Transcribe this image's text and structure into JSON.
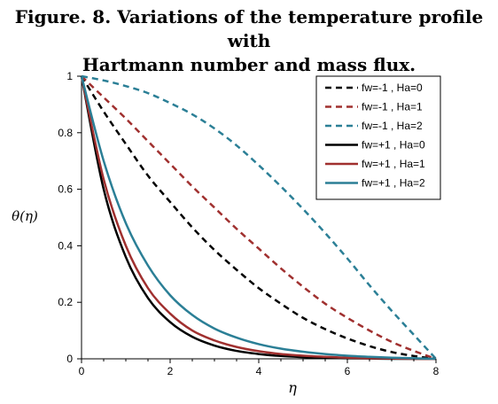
{
  "figure": {
    "title_line1": "Figure. 8. Variations of the temperature profile with",
    "title_line2": "Hartmann number and mass flux."
  },
  "chart_data": {
    "type": "line",
    "title": "Figure. 8. Variations of the temperature profile with Hartmann number and mass flux.",
    "xlabel": "η",
    "ylabel": "θ(η)",
    "xlim": [
      0,
      8
    ],
    "ylim": [
      0,
      1
    ],
    "xticks": [
      "0",
      "2",
      "4",
      "6",
      "8"
    ],
    "yticks": [
      "0",
      "0.2",
      "0.4",
      "0.6",
      "0.8",
      "1"
    ],
    "grid": false,
    "legend_position": "top-right",
    "x": [
      0,
      0.5,
      1,
      1.5,
      2,
      2.5,
      3,
      3.5,
      4,
      4.5,
      5,
      5.5,
      6,
      6.5,
      7,
      7.5,
      8
    ],
    "series": [
      {
        "name": "fw=-1 , Ha=0",
        "color": "#000000",
        "dash": "dashed",
        "values": [
          1,
          0.875,
          0.76,
          0.648,
          0.555,
          0.465,
          0.385,
          0.315,
          0.25,
          0.195,
          0.145,
          0.105,
          0.072,
          0.045,
          0.024,
          0.01,
          0
        ]
      },
      {
        "name": "fw=-1 , Ha=1",
        "color": "#A0302F",
        "dash": "dashed",
        "values": [
          1,
          0.925,
          0.85,
          0.77,
          0.69,
          0.61,
          0.535,
          0.46,
          0.39,
          0.32,
          0.255,
          0.195,
          0.145,
          0.1,
          0.06,
          0.028,
          0
        ]
      },
      {
        "name": "fw=-1 , Ha=2",
        "color": "#2B7F96",
        "dash": "dashed",
        "values": [
          1,
          0.985,
          0.965,
          0.94,
          0.905,
          0.865,
          0.815,
          0.755,
          0.685,
          0.61,
          0.53,
          0.445,
          0.355,
          0.26,
          0.17,
          0.085,
          0
        ]
      },
      {
        "name": "fw=+1 , Ha=0",
        "color": "#000000",
        "dash": "solid",
        "values": [
          1,
          0.6,
          0.36,
          0.215,
          0.13,
          0.078,
          0.047,
          0.028,
          0.017,
          0.01,
          0.006,
          0.003,
          0.002,
          0.001,
          0,
          0,
          0
        ]
      },
      {
        "name": "fw=+1 , Ha=1",
        "color": "#A0302F",
        "dash": "solid",
        "values": [
          1,
          0.635,
          0.4,
          0.25,
          0.16,
          0.1,
          0.065,
          0.042,
          0.027,
          0.017,
          0.011,
          0.007,
          0.004,
          0.002,
          0.001,
          0,
          0
        ]
      },
      {
        "name": "fw=+1 , Ha=2",
        "color": "#2B7F96",
        "dash": "solid",
        "values": [
          1,
          0.7,
          0.48,
          0.33,
          0.225,
          0.155,
          0.107,
          0.075,
          0.052,
          0.036,
          0.025,
          0.017,
          0.011,
          0.007,
          0.004,
          0.002,
          0
        ]
      }
    ]
  }
}
